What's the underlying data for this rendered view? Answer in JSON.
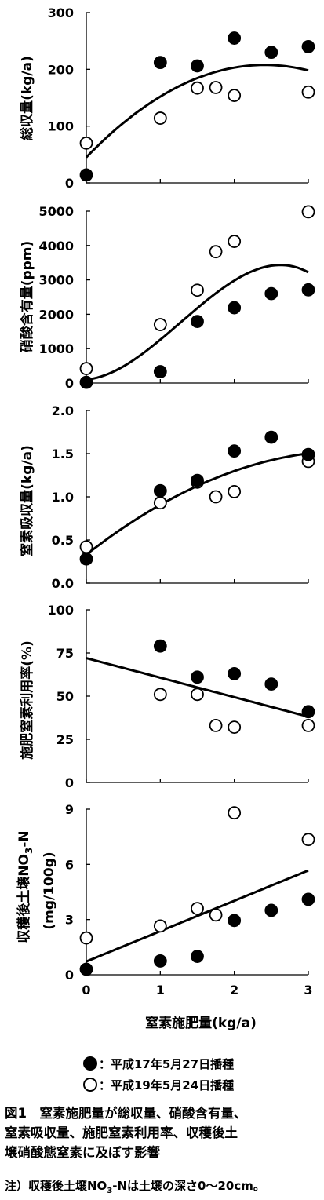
{
  "chart_data": [
    {
      "type": "scatter",
      "ylabel": "総収量(kg/a)",
      "ylim": [
        0,
        300
      ],
      "yticks": [
        "0",
        "100",
        "200",
        "300"
      ],
      "xlim": [
        0,
        3
      ],
      "series": [
        {
          "name": "平成17年5月27日播種",
          "x": [
            0,
            1,
            1.5,
            2,
            2.5,
            3
          ],
          "values": [
            14,
            212,
            206,
            255,
            230,
            240
          ]
        },
        {
          "name": "平成19年5月24日播種",
          "x": [
            0,
            1,
            1.5,
            1.75,
            2,
            3
          ],
          "values": [
            70,
            114,
            167,
            168,
            154,
            160
          ]
        }
      ],
      "trend": {
        "kind": "quadratic",
        "coef": [
          45,
          135,
          -28
        ]
      }
    },
    {
      "type": "scatter",
      "ylabel": "硝酸含有量(ppm)",
      "ylim": [
        0,
        5000
      ],
      "yticks": [
        "0",
        "1000",
        "2000",
        "3000",
        "4000",
        "5000"
      ],
      "xlim": [
        0,
        3
      ],
      "series": [
        {
          "name": "平成17年5月27日播種",
          "x": [
            0,
            1,
            1.5,
            2,
            2.5,
            3
          ],
          "values": [
            20,
            330,
            1790,
            2190,
            2600,
            2710
          ]
        },
        {
          "name": "平成19年5月24日播種",
          "x": [
            0,
            1,
            1.5,
            1.75,
            2,
            3
          ],
          "values": [
            420,
            1700,
            2700,
            3820,
            4120,
            4980
          ]
        }
      ],
      "trend": {
        "kind": "cubic",
        "coef": [
          100,
          200,
          1300,
          -340
        ]
      }
    },
    {
      "type": "scatter",
      "ylabel": "窒素吸収量(kg/a)",
      "ylim": [
        0,
        2.0
      ],
      "yticks": [
        "0.0",
        "0.5",
        "1.0",
        "1.5",
        "2.0"
      ],
      "xlim": [
        0,
        3
      ],
      "series": [
        {
          "name": "平成17年5月27日播種",
          "x": [
            0,
            1,
            1.5,
            2,
            2.5,
            3
          ],
          "values": [
            0.28,
            1.07,
            1.19,
            1.53,
            1.69,
            1.49
          ]
        },
        {
          "name": "平成19年5月24日播種",
          "x": [
            0,
            1,
            1.5,
            1.75,
            2,
            3
          ],
          "values": [
            0.42,
            0.93,
            1.17,
            1.0,
            1.06,
            1.41
          ]
        }
      ],
      "trend": {
        "kind": "quadratic",
        "coef": [
          0.33,
          0.67,
          -0.093
        ]
      }
    },
    {
      "type": "scatter",
      "ylabel": "施肥窒素利用率(%)",
      "ylim": [
        0,
        100
      ],
      "yticks": [
        "0",
        "25",
        "50",
        "75",
        "100"
      ],
      "xlim": [
        0,
        3
      ],
      "series": [
        {
          "name": "平成17年5月27日播種",
          "x": [
            1,
            1.5,
            2,
            2.5,
            3
          ],
          "values": [
            79,
            61,
            63,
            57,
            41
          ]
        },
        {
          "name": "平成19年5月24日播種",
          "x": [
            1,
            1.5,
            1.75,
            2,
            3
          ],
          "values": [
            51,
            51,
            33,
            32,
            33
          ]
        }
      ],
      "trend": {
        "kind": "linear",
        "coef": [
          72,
          -11.3
        ]
      }
    },
    {
      "type": "scatter",
      "ylabel": "収穫後土壌NO3-N",
      "ylabel_sub": "3",
      "ylabel_unit": "(mg/100g)",
      "ylim": [
        0,
        9
      ],
      "yticks": [
        "0",
        "3",
        "6",
        "9"
      ],
      "xlim": [
        0,
        3
      ],
      "xlabel": "窒素施肥量(kg/a)",
      "xticks": [
        "0",
        "1",
        "2",
        "3"
      ],
      "series": [
        {
          "name": "平成17年5月27日播種",
          "x": [
            0,
            1,
            1.5,
            2,
            2.5,
            3
          ],
          "values": [
            0.3,
            0.75,
            1.0,
            2.95,
            3.5,
            4.1
          ]
        },
        {
          "name": "平成19年5月24日播種",
          "x": [
            0,
            1,
            1.5,
            1.75,
            2,
            3
          ],
          "values": [
            2.0,
            2.65,
            3.6,
            3.25,
            8.8,
            7.35
          ]
        }
      ],
      "trend": {
        "kind": "linear",
        "coef": [
          0.72,
          1.65
        ]
      }
    }
  ],
  "legend": [
    {
      "marker": "filled-circle",
      "label": "：平成17年5月27日播種"
    },
    {
      "marker": "open-circle",
      "label": "：平成19年5月24日播種"
    }
  ],
  "ylabel_parts": {
    "p5_before": "収穫後土壌NO",
    "p5_sub": "3",
    "p5_after": "-N"
  },
  "caption": {
    "line1": "図1　窒素施肥量が総収量、硝酸含有量、",
    "line2": "窒素吸収量、施肥窒素利用率、収穫後土",
    "line3": "壌硝酸態窒素に及ぼす影響"
  },
  "note": {
    "before": "注）収穫後土壌NO",
    "sub": "3",
    "after": "-Nは土壌の深さ0～20cm。"
  }
}
